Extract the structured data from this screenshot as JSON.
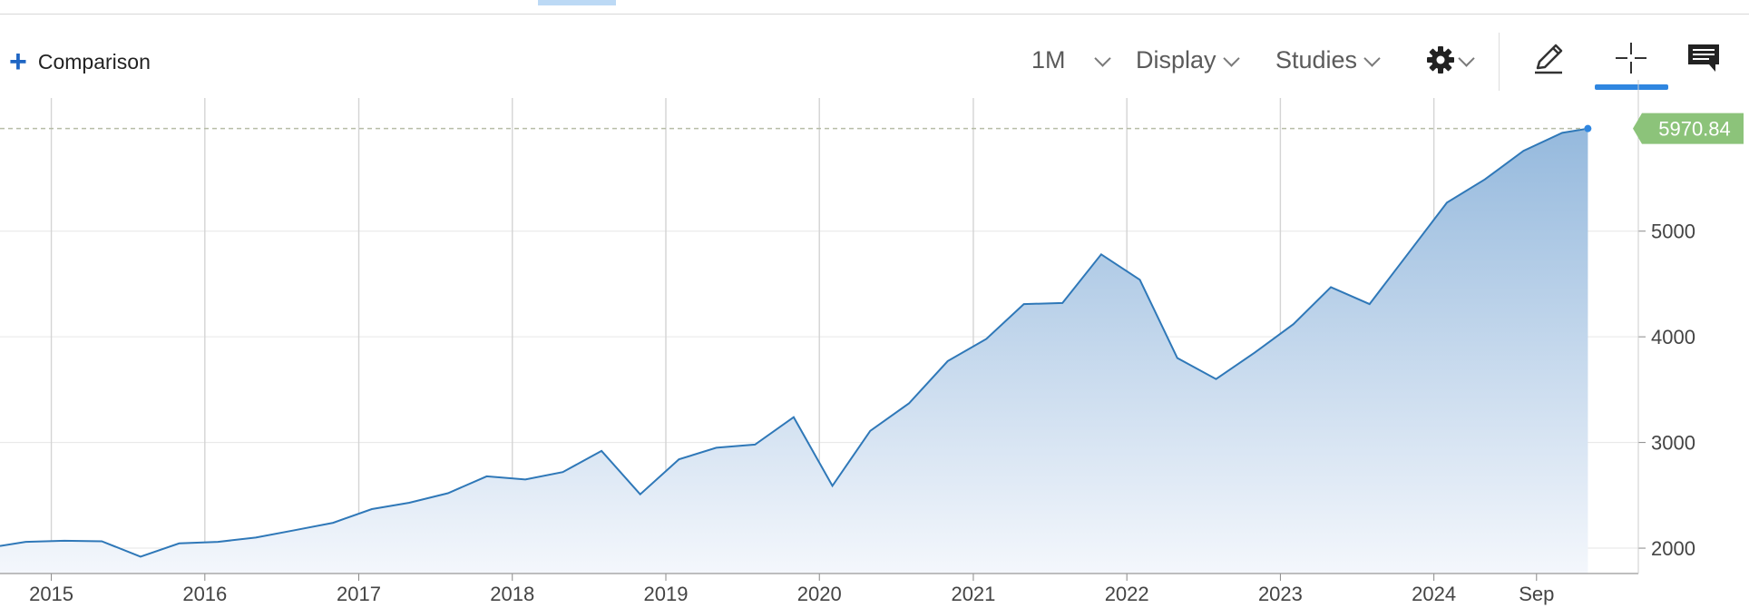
{
  "toolbar": {
    "comparison_icon": "plus-icon",
    "comparison_label": "Comparison",
    "interval_label": "1M",
    "display_label": "Display",
    "studies_label": "Studies",
    "settings_icon": "gear-icon",
    "draw_icon": "pencil-icon",
    "crosshair_icon": "crosshair-icon",
    "comments_icon": "comment-icon",
    "active_tool": "crosshair"
  },
  "chart_data": {
    "type": "area",
    "title": "",
    "xlabel": "",
    "ylabel": "",
    "last_value_label": "5970.84",
    "last_value": 5970.84,
    "x_tick_labels": [
      {
        "date": "2015-01-01",
        "label": "2015"
      },
      {
        "date": "2016-01-01",
        "label": "2016"
      },
      {
        "date": "2017-01-01",
        "label": "2017"
      },
      {
        "date": "2018-01-01",
        "label": "2018"
      },
      {
        "date": "2019-01-01",
        "label": "2019"
      },
      {
        "date": "2020-01-01",
        "label": "2020"
      },
      {
        "date": "2021-01-01",
        "label": "2021"
      },
      {
        "date": "2022-01-01",
        "label": "2022"
      },
      {
        "date": "2023-01-01",
        "label": "2023"
      },
      {
        "date": "2024-01-01",
        "label": "2024"
      },
      {
        "date": "2024-09-01",
        "label": "Sep"
      }
    ],
    "y_ticks": [
      2000,
      3000,
      4000,
      5000
    ],
    "xlim": [
      "2014-09-01",
      "2025-05-01"
    ],
    "ylim": [
      1760,
      6260
    ],
    "grid": true,
    "colors": {
      "line": "#2f78b8",
      "area_top": "#95b9dd",
      "area_bottom": "#f4f7fc",
      "last_value_badge": "#8cc37a",
      "reference_line": "#b7bda7"
    },
    "points": [
      [
        "2014-09-01",
        2020
      ],
      [
        "2014-11-01",
        2060
      ],
      [
        "2015-02-01",
        2070
      ],
      [
        "2015-05-01",
        2065
      ],
      [
        "2015-08-01",
        1920
      ],
      [
        "2015-11-01",
        2045
      ],
      [
        "2016-02-01",
        2060
      ],
      [
        "2016-05-01",
        2100
      ],
      [
        "2016-08-01",
        2170
      ],
      [
        "2016-11-01",
        2240
      ],
      [
        "2017-02-01",
        2370
      ],
      [
        "2017-05-01",
        2430
      ],
      [
        "2017-08-01",
        2520
      ],
      [
        "2017-11-01",
        2680
      ],
      [
        "2018-02-01",
        2650
      ],
      [
        "2018-05-01",
        2720
      ],
      [
        "2018-08-01",
        2920
      ],
      [
        "2018-11-01",
        2510
      ],
      [
        "2019-02-01",
        2840
      ],
      [
        "2019-05-01",
        2950
      ],
      [
        "2019-08-01",
        2980
      ],
      [
        "2019-11-01",
        3240
      ],
      [
        "2020-02-01",
        2590
      ],
      [
        "2020-05-01",
        3110
      ],
      [
        "2020-08-01",
        3370
      ],
      [
        "2020-11-01",
        3770
      ],
      [
        "2021-02-01",
        3980
      ],
      [
        "2021-05-01",
        4310
      ],
      [
        "2021-08-01",
        4320
      ],
      [
        "2021-11-01",
        4780
      ],
      [
        "2022-02-01",
        4540
      ],
      [
        "2022-05-01",
        3800
      ],
      [
        "2022-08-01",
        3600
      ],
      [
        "2022-11-01",
        3850
      ],
      [
        "2023-02-01",
        4120
      ],
      [
        "2023-05-01",
        4470
      ],
      [
        "2023-08-01",
        4310
      ],
      [
        "2023-11-01",
        4790
      ],
      [
        "2024-02-01",
        5270
      ],
      [
        "2024-05-01",
        5490
      ],
      [
        "2024-08-01",
        5760
      ],
      [
        "2024-11-01",
        5930
      ],
      [
        "2025-01-01",
        5970.84
      ]
    ]
  }
}
